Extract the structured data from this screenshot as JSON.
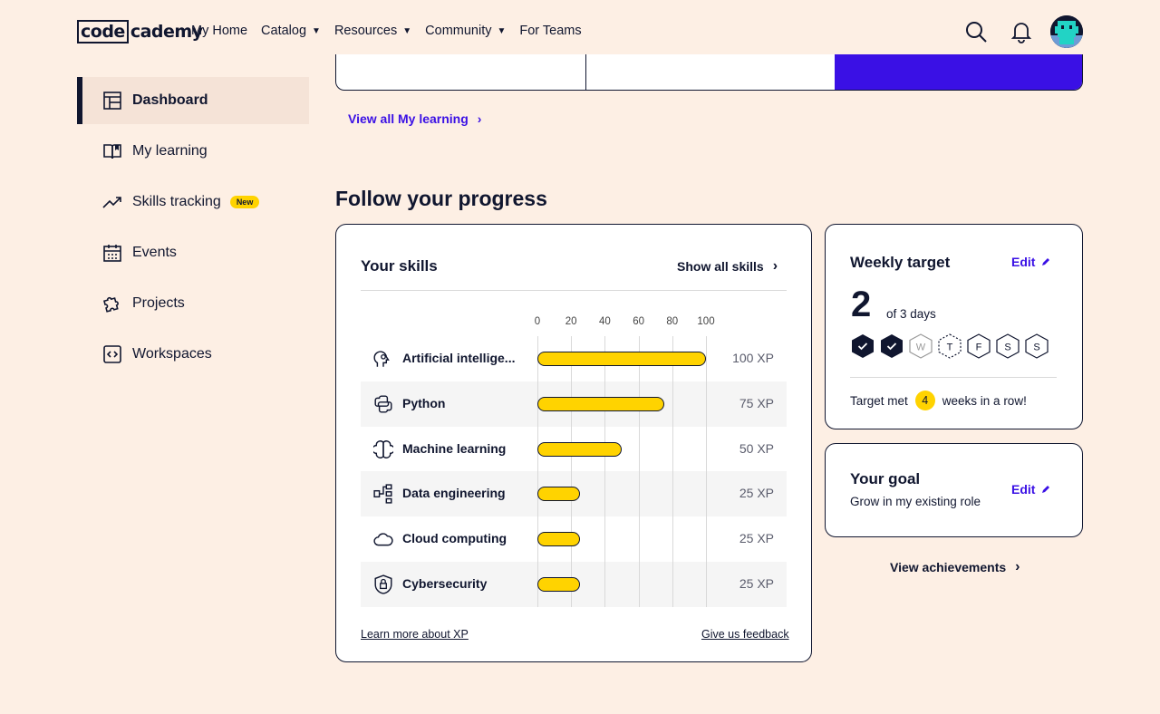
{
  "header": {
    "logo_left": "code",
    "logo_right": "cademy",
    "nav": [
      {
        "label": "My Home",
        "dropdown": false
      },
      {
        "label": "Catalog",
        "dropdown": true
      },
      {
        "label": "Resources",
        "dropdown": true
      },
      {
        "label": "Community",
        "dropdown": true
      },
      {
        "label": "For Teams",
        "dropdown": false
      }
    ],
    "icons": [
      "search-icon",
      "bell-icon",
      "avatar"
    ]
  },
  "sidebar": {
    "items": [
      {
        "label": "Dashboard",
        "icon": "dashboard-icon",
        "active": true
      },
      {
        "label": "My learning",
        "icon": "book-icon"
      },
      {
        "label": "Skills tracking",
        "icon": "trend-icon",
        "badge": "New"
      },
      {
        "label": "Events",
        "icon": "calendar-icon"
      },
      {
        "label": "Projects",
        "icon": "puzzle-icon"
      },
      {
        "label": "Workspaces",
        "icon": "code-icon"
      }
    ]
  },
  "main": {
    "view_all_link": "View all My learning",
    "section_title": "Follow your progress",
    "skills": {
      "title": "Your skills",
      "show_all": "Show all skills",
      "learn_more": "Learn more about XP",
      "feedback": "Give us feedback"
    },
    "weekly": {
      "title": "Weekly target",
      "edit": "Edit",
      "count": "2",
      "of_days": "of 3 days",
      "days": [
        {
          "letter": "",
          "done": true
        },
        {
          "letter": "",
          "done": true
        },
        {
          "letter": "W",
          "done": false
        },
        {
          "letter": "T",
          "done": false,
          "today": true
        },
        {
          "letter": "F",
          "done": false
        },
        {
          "letter": "S",
          "done": false
        },
        {
          "letter": "S",
          "done": false
        }
      ],
      "target_prefix": "Target met",
      "streak": "4",
      "target_suffix": "weeks in a row!"
    },
    "goal": {
      "title": "Your goal",
      "text": "Grow in my existing role",
      "edit": "Edit"
    },
    "achievements": "View achievements"
  },
  "chart_data": {
    "type": "bar",
    "orientation": "horizontal",
    "categories": [
      "Artificial intellige...",
      "Python",
      "Machine learning",
      "Data engineering",
      "Cloud computing",
      "Cybersecurity"
    ],
    "values": [
      100,
      75,
      50,
      25,
      25,
      25
    ],
    "value_labels": [
      "100 XP",
      "75 XP",
      "50 XP",
      "25 XP",
      "25 XP",
      "25 XP"
    ],
    "icons": [
      "ai-head-icon",
      "python-icon",
      "brain-icon",
      "data-flow-icon",
      "cloud-icon",
      "lock-shield-icon"
    ],
    "xticks": [
      "0",
      "20",
      "40",
      "60",
      "80",
      "100"
    ],
    "xlim": [
      0,
      100
    ],
    "bar_color": "#ffd300"
  }
}
